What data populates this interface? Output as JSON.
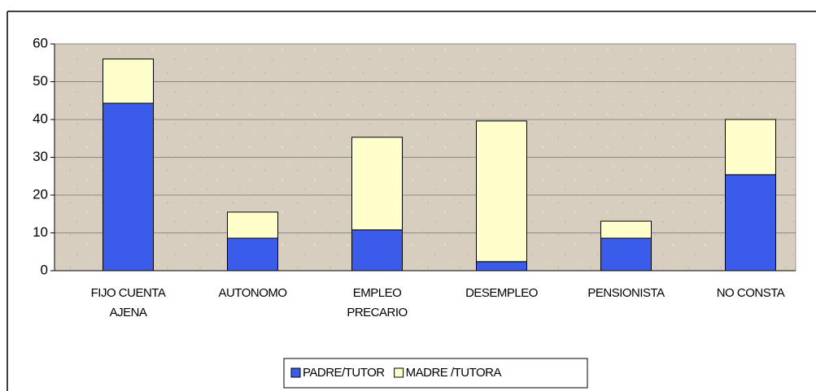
{
  "chart_data": {
    "type": "stacked_bar",
    "categories": [
      "FIJO CUENTA AJENA",
      "AUTONOMO",
      "EMPLEO PRECARIO",
      "DESEMPLEO",
      "PENSIONISTA",
      "NO CONSTA"
    ],
    "series": [
      {
        "name": "PADRE/TUTOR",
        "color": "#3b5ce8",
        "values": [
          44.3,
          8.6,
          10.8,
          2.4,
          8.6,
          25.4
        ]
      },
      {
        "name": "MADRE /TUTORA",
        "color": "#ffffcc",
        "values": [
          11.7,
          6.9,
          24.5,
          37.2,
          4.5,
          14.6
        ]
      }
    ],
    "ylim": [
      0,
      60
    ],
    "yticks": [
      0,
      10,
      20,
      30,
      40,
      50,
      60
    ],
    "grid": true,
    "legend": "bottom"
  }
}
